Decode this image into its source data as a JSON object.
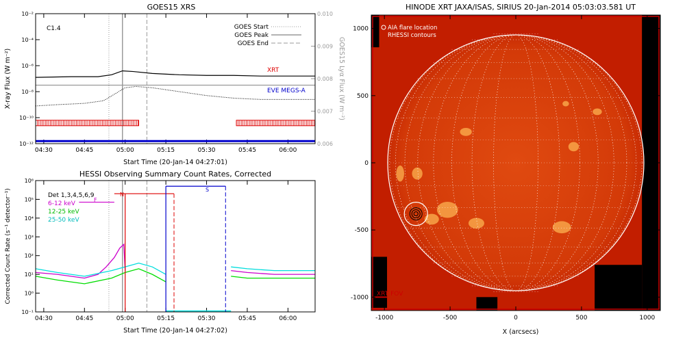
{
  "colors": {
    "axis": "#000000",
    "grey": "#999999",
    "red": "#dd0000",
    "blue": "#0000cc",
    "magenta": "#cc00cc",
    "green": "#00dd00",
    "cyan": "#00dddd",
    "sun_dark": "#c21e00",
    "sun_light": "#ffbb55"
  },
  "chart_data": [
    {
      "id": "goes",
      "type": "line",
      "title": "GOES15 XRS",
      "xlabel": "Start Time (20-Jan-14 04:27:01)",
      "ylabel": "X-ray Flux (W m⁻²)",
      "y2label": "GOES15 Lyα Flux (W m⁻²)",
      "x_ticks": [
        "04:30",
        "04:45",
        "05:00",
        "05:15",
        "05:30",
        "05:45",
        "06:00"
      ],
      "xlim_min": [
        27,
        130
      ],
      "yscale": "log",
      "ylim_exp": [
        -12,
        -2
      ],
      "y_ticks": [
        "10⁻¹²",
        "10⁻¹⁰",
        "10⁻⁸",
        "10⁻⁶",
        "10⁻⁴",
        "10⁻²"
      ],
      "y2_ticks": [
        "0.006",
        "0.007",
        "0.008",
        "0.009",
        "0.010"
      ],
      "y2lim": [
        0.006,
        0.01
      ],
      "class_label": "C1.4",
      "legend": [
        "GOES Start",
        "GOES Peak",
        "GOES End"
      ],
      "label_xrt": "XRT",
      "label_eve": "EVE MEGS-A",
      "event_minutes": {
        "start": 54,
        "peak": 59,
        "end": 68
      },
      "series": [
        {
          "name": "GOES long",
          "minutes": [
            27,
            40,
            50,
            55,
            59,
            63,
            70,
            80,
            90,
            100,
            110,
            120,
            130
          ],
          "log10": [
            -6.9,
            -6.85,
            -6.85,
            -6.7,
            -6.4,
            -6.45,
            -6.6,
            -6.7,
            -6.75,
            -6.75,
            -6.8,
            -6.8,
            -6.8
          ]
        },
        {
          "name": "GOES short",
          "minutes": [
            27,
            35,
            45,
            52,
            56,
            60,
            64,
            70,
            80,
            90,
            100,
            110,
            120,
            130
          ],
          "log10": [
            -9.1,
            -9.0,
            -8.9,
            -8.7,
            -8.2,
            -7.7,
            -7.6,
            -7.7,
            -8.0,
            -8.3,
            -8.5,
            -8.6,
            -8.6,
            -8.6
          ]
        },
        {
          "name": "Lyα",
          "minutes": [
            27,
            130
          ],
          "values": [
            0.0078,
            0.0078
          ]
        }
      ],
      "xrt_coverage": [
        [
          27,
          65
        ],
        [
          101,
          130
        ]
      ],
      "eve_coverage": [
        [
          27,
          130
        ]
      ]
    },
    {
      "id": "hessi",
      "type": "line",
      "title": "HESSI Observing Summary Count Rates, Corrected",
      "xlabel": "Start Time (20-Jan-14 04:27:02)",
      "ylabel": "Corrected Count Rate (s⁻¹ detector⁻¹)",
      "x_ticks": [
        "04:30",
        "04:45",
        "05:00",
        "05:15",
        "05:30",
        "05:45",
        "06:00"
      ],
      "xlim_min": [
        27,
        130
      ],
      "yscale": "log",
      "ylim_exp": [
        -1,
        6
      ],
      "y_ticks": [
        "10⁻¹",
        "10⁰",
        "10¹",
        "10²",
        "10³",
        "10⁴",
        "10⁵",
        "10⁶"
      ],
      "legend": [
        "Det 1,3,4,5,6,9",
        "6-12 keV",
        "12-25 keV",
        "25-50 keV"
      ],
      "flags": {
        "F": "F",
        "N": "N",
        "S": "S"
      },
      "event_minutes": {
        "start": 54,
        "peak": 59,
        "end": 68
      },
      "flag_lines": {
        "red_solid": 60,
        "red_dashed": 78,
        "blue_solid": 75,
        "blue_dashed": 97
      },
      "series": [
        {
          "name": "6-12 keV",
          "minutes": [
            27,
            35,
            40,
            45,
            50,
            53,
            56,
            58,
            59.5,
            60
          ],
          "log10": [
            1.1,
            1.0,
            0.9,
            0.8,
            1.0,
            1.4,
            1.9,
            2.4,
            2.6,
            1.2
          ]
        },
        {
          "name": "12-25 keV",
          "minutes": [
            27,
            35,
            45,
            55,
            60,
            65,
            70,
            75
          ],
          "log10": [
            0.9,
            0.7,
            0.5,
            0.8,
            1.1,
            1.3,
            1.0,
            0.6
          ]
        },
        {
          "name": "25-50 keV",
          "minutes": [
            27,
            35,
            45,
            55,
            60,
            65,
            70,
            75
          ],
          "log10": [
            1.3,
            1.1,
            0.9,
            1.2,
            1.4,
            1.6,
            1.4,
            1.0
          ]
        },
        {
          "name": "6-12 keV late",
          "minutes": [
            99,
            105,
            115,
            125,
            130
          ],
          "log10": [
            1.2,
            1.1,
            1.0,
            1.0,
            1.0
          ]
        },
        {
          "name": "12-25 keV late",
          "minutes": [
            99,
            105,
            115,
            125,
            130
          ],
          "log10": [
            0.9,
            0.8,
            0.8,
            0.8,
            0.8
          ]
        },
        {
          "name": "25-50 keV late",
          "minutes": [
            99,
            105,
            115,
            125,
            130
          ],
          "log10": [
            1.4,
            1.3,
            1.2,
            1.2,
            1.2
          ]
        }
      ]
    },
    {
      "id": "hinode",
      "type": "image",
      "title": "HINODE XRT JAXA/ISAS, SIRIUS 20-Jan-2014 05:03:03.581 UT",
      "xlabel": "X (arcsecs)",
      "ylabel": "Y (arcsecs)",
      "x_ticks": [
        "-1000",
        "-500",
        "0",
        "500",
        "1000"
      ],
      "y_ticks": [
        "1000",
        "500",
        "0",
        "-500",
        "-1000"
      ],
      "xlim": [
        -1100,
        1100
      ],
      "ylim": [
        -1100,
        1100
      ],
      "legend": [
        "AIA flare location",
        "RHESSI contours"
      ],
      "fov_label": "XRT FOV",
      "solar_radius": 975,
      "flare_location": [
        -760,
        -380
      ]
    }
  ]
}
